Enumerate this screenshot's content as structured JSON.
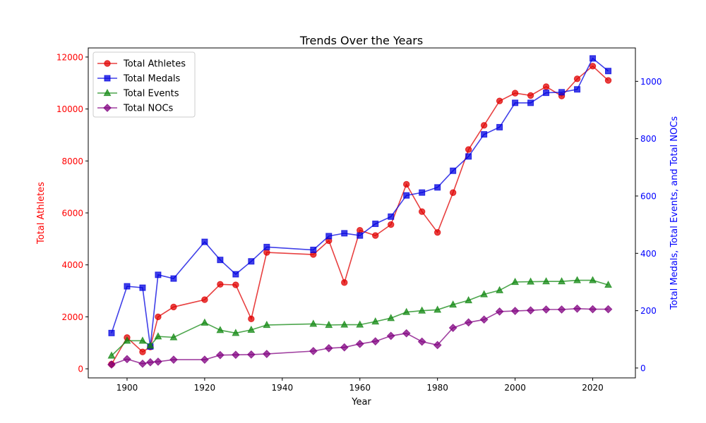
{
  "chart_data": {
    "type": "line",
    "title": "Trends Over the Years",
    "xlabel": "Year",
    "ylabel_left": "Total Athletes",
    "ylabel_right": "Total Medals, Total Events, and Total NOCs",
    "xlim": [
      1890,
      2031
    ],
    "ylim_left": [
      -350,
      12350
    ],
    "ylim_right": [
      -34.5,
      1116.5
    ],
    "xticks": [
      1900,
      1920,
      1940,
      1960,
      1980,
      2000,
      2020
    ],
    "yticks_left": [
      0,
      2000,
      4000,
      6000,
      8000,
      10000,
      12000
    ],
    "yticks_right": [
      0,
      200,
      400,
      600,
      800,
      1000
    ],
    "legend_position": "upper-left",
    "colors": {
      "athletes": "#e00000",
      "medals": "#0000e0",
      "events": "#118811",
      "nocs": "#800080",
      "left_axis": "#ff0000",
      "right_axis": "#0000ff"
    },
    "series": [
      {
        "name": "Total Athletes",
        "axis": "left",
        "color": "#e00000",
        "marker": "circle",
        "points": [
          [
            1896,
            176
          ],
          [
            1900,
            1200
          ],
          [
            1904,
            650
          ],
          [
            1906,
            840
          ],
          [
            1908,
            2000
          ],
          [
            1912,
            2380
          ],
          [
            1920,
            2660
          ],
          [
            1924,
            3250
          ],
          [
            1928,
            3230
          ],
          [
            1932,
            1920
          ],
          [
            1936,
            4480
          ],
          [
            1948,
            4400
          ],
          [
            1952,
            4930
          ],
          [
            1956,
            3320
          ],
          [
            1960,
            5330
          ],
          [
            1964,
            5130
          ],
          [
            1968,
            5550
          ],
          [
            1972,
            7100
          ],
          [
            1976,
            6050
          ],
          [
            1980,
            5250
          ],
          [
            1984,
            6780
          ],
          [
            1988,
            8440
          ],
          [
            1992,
            9370
          ],
          [
            1996,
            10310
          ],
          [
            2000,
            10610
          ],
          [
            2004,
            10520
          ],
          [
            2008,
            10860
          ],
          [
            2012,
            10500
          ],
          [
            2016,
            11160
          ],
          [
            2020,
            11650
          ],
          [
            2024,
            11100
          ]
        ]
      },
      {
        "name": "Total Medals",
        "axis": "right",
        "color": "#0000e0",
        "marker": "square",
        "points": [
          [
            1896,
            122
          ],
          [
            1900,
            285
          ],
          [
            1904,
            280
          ],
          [
            1906,
            75
          ],
          [
            1908,
            325
          ],
          [
            1912,
            312
          ],
          [
            1920,
            440
          ],
          [
            1924,
            377
          ],
          [
            1928,
            327
          ],
          [
            1932,
            372
          ],
          [
            1936,
            422
          ],
          [
            1948,
            412
          ],
          [
            1952,
            460
          ],
          [
            1956,
            470
          ],
          [
            1960,
            462
          ],
          [
            1964,
            503
          ],
          [
            1968,
            528
          ],
          [
            1972,
            602
          ],
          [
            1976,
            612
          ],
          [
            1980,
            630
          ],
          [
            1984,
            688
          ],
          [
            1988,
            738
          ],
          [
            1992,
            815
          ],
          [
            1996,
            840
          ],
          [
            2000,
            925
          ],
          [
            2004,
            925
          ],
          [
            2008,
            960
          ],
          [
            2012,
            962
          ],
          [
            2016,
            972
          ],
          [
            2020,
            1080
          ],
          [
            2024,
            1036
          ]
        ]
      },
      {
        "name": "Total Events",
        "axis": "right",
        "color": "#118811",
        "marker": "triangle",
        "points": [
          [
            1896,
            43
          ],
          [
            1900,
            95
          ],
          [
            1904,
            95
          ],
          [
            1906,
            78
          ],
          [
            1908,
            110
          ],
          [
            1912,
            107
          ],
          [
            1920,
            158
          ],
          [
            1924,
            132
          ],
          [
            1928,
            122
          ],
          [
            1932,
            133
          ],
          [
            1936,
            150
          ],
          [
            1948,
            154
          ],
          [
            1952,
            150
          ],
          [
            1956,
            151
          ],
          [
            1960,
            151
          ],
          [
            1964,
            162
          ],
          [
            1968,
            174
          ],
          [
            1972,
            195
          ],
          [
            1976,
            200
          ],
          [
            1980,
            203
          ],
          [
            1984,
            221
          ],
          [
            1988,
            236
          ],
          [
            1992,
            257
          ],
          [
            1996,
            271
          ],
          [
            2000,
            300
          ],
          [
            2004,
            301
          ],
          [
            2008,
            302
          ],
          [
            2012,
            302
          ],
          [
            2016,
            306
          ],
          [
            2020,
            306
          ],
          [
            2024,
            290
          ]
        ]
      },
      {
        "name": "Total NOCs",
        "axis": "right",
        "color": "#800080",
        "marker": "diamond",
        "points": [
          [
            1896,
            12
          ],
          [
            1900,
            31
          ],
          [
            1904,
            15
          ],
          [
            1906,
            20
          ],
          [
            1908,
            22
          ],
          [
            1912,
            29
          ],
          [
            1920,
            29
          ],
          [
            1924,
            45
          ],
          [
            1928,
            46
          ],
          [
            1932,
            47
          ],
          [
            1936,
            49
          ],
          [
            1948,
            59
          ],
          [
            1952,
            69
          ],
          [
            1956,
            72
          ],
          [
            1960,
            84
          ],
          [
            1964,
            93
          ],
          [
            1968,
            112
          ],
          [
            1972,
            121
          ],
          [
            1976,
            92
          ],
          [
            1980,
            80
          ],
          [
            1984,
            140
          ],
          [
            1988,
            159
          ],
          [
            1992,
            169
          ],
          [
            1996,
            197
          ],
          [
            2000,
            199
          ],
          [
            2004,
            201
          ],
          [
            2008,
            204
          ],
          [
            2012,
            204
          ],
          [
            2016,
            207
          ],
          [
            2020,
            205
          ],
          [
            2024,
            205
          ]
        ]
      }
    ]
  }
}
